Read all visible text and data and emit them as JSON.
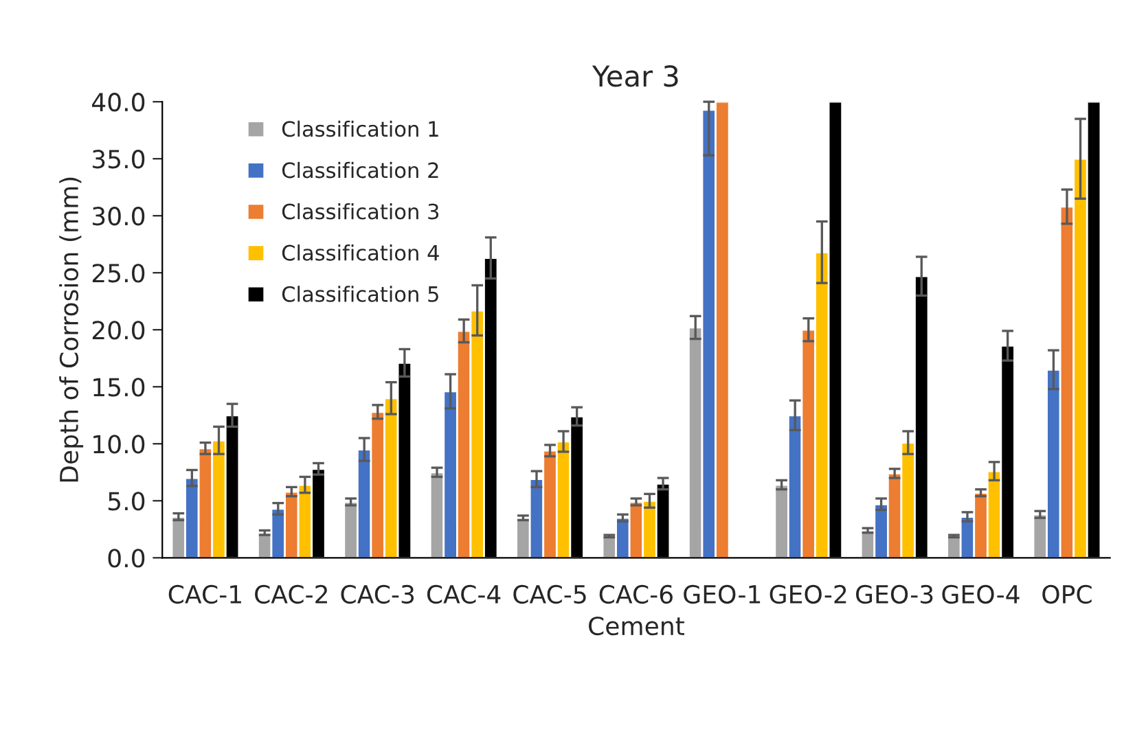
{
  "chart_data": {
    "type": "bar",
    "title": "Year 3",
    "xlabel": "Cement",
    "ylabel": "Depth of Corrosion (mm)",
    "categories": [
      "CAC-1",
      "CAC-2",
      "CAC-3",
      "CAC-4",
      "CAC-5",
      "CAC-6",
      "GEO-1",
      "GEO-2",
      "GEO-3",
      "GEO-4",
      "OPC"
    ],
    "series": [
      {
        "name": "Classification 1",
        "color": "#a5a5a5",
        "values": [
          3.6,
          2.2,
          4.9,
          7.5,
          3.5,
          1.9,
          20.2,
          6.4,
          2.4,
          1.9,
          3.8
        ],
        "errors": [
          0.3,
          0.2,
          0.3,
          0.4,
          0.2,
          0.1,
          1.0,
          0.4,
          0.2,
          0.1,
          0.3
        ]
      },
      {
        "name": "Classification 2",
        "color": "#4472c4",
        "values": [
          7.0,
          4.3,
          9.5,
          14.6,
          6.9,
          3.5,
          39.3,
          12.5,
          4.7,
          3.6,
          16.5
        ],
        "errors": [
          0.7,
          0.5,
          1.0,
          1.5,
          0.7,
          0.3,
          [
            35.3,
            40
          ],
          1.3,
          0.5,
          0.4,
          1.7
        ]
      },
      {
        "name": "Classification 3",
        "color": "#ed7d31",
        "values": [
          9.6,
          5.8,
          12.8,
          19.9,
          9.4,
          4.9,
          40,
          20.0,
          7.4,
          5.7,
          30.8
        ],
        "errors": [
          0.5,
          0.4,
          0.6,
          1.0,
          0.5,
          0.3,
          null,
          1.0,
          0.4,
          0.3,
          1.5
        ]
      },
      {
        "name": "Classification 4",
        "color": "#ffc000",
        "values": [
          10.3,
          6.4,
          14.0,
          21.7,
          10.2,
          5.0,
          null,
          26.8,
          10.1,
          7.6,
          35.0
        ],
        "errors": [
          1.2,
          0.7,
          1.4,
          2.2,
          0.9,
          0.6,
          null,
          2.7,
          1.0,
          0.8,
          3.5
        ]
      },
      {
        "name": "Classification 5",
        "color": "#000000",
        "values": [
          12.5,
          7.8,
          17.1,
          26.3,
          12.4,
          6.5,
          null,
          40,
          24.7,
          18.6,
          40
        ],
        "errors": [
          1.0,
          0.5,
          1.2,
          1.8,
          0.8,
          0.5,
          null,
          null,
          1.7,
          1.3,
          null
        ]
      }
    ],
    "ylim": [
      0,
      40
    ],
    "yticks": [
      {
        "value": 0,
        "label": "0.0"
      },
      {
        "value": 5,
        "label": "5.0"
      },
      {
        "value": 10,
        "label": "10.0"
      },
      {
        "value": 15,
        "label": "15.0"
      },
      {
        "value": 20,
        "label": "20.0"
      },
      {
        "value": 25,
        "label": "25.0"
      },
      {
        "value": 30,
        "label": "30.0"
      },
      {
        "value": 35,
        "label": "35.0"
      },
      {
        "value": 40,
        "label": "40.0"
      }
    ],
    "grid": false,
    "legend": "top left"
  }
}
